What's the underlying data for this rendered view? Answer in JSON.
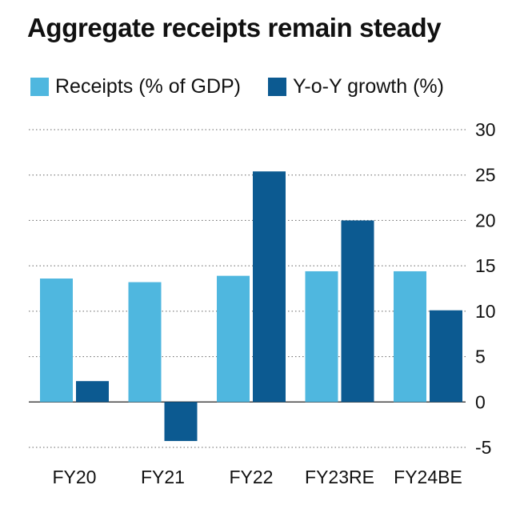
{
  "chart_data": {
    "type": "bar",
    "title": "Aggregate receipts remain steady",
    "categories": [
      "FY20",
      "FY21",
      "FY22",
      "FY23RE",
      "FY24BE"
    ],
    "series": [
      {
        "name": "Receipts (% of GDP)",
        "color": "#4fb7df",
        "values": [
          13.6,
          13.2,
          13.9,
          14.4,
          14.4
        ]
      },
      {
        "name": "Y-o-Y growth (%)",
        "color": "#0c5a91",
        "values": [
          2.3,
          -4.3,
          25.4,
          20.0,
          10.1
        ]
      }
    ],
    "ylim": [
      -5,
      30
    ],
    "yticks": [
      -5,
      0,
      5,
      10,
      15,
      20,
      25,
      30
    ],
    "grid": true,
    "legend_position": "top-left",
    "xlabel": "",
    "ylabel": ""
  }
}
